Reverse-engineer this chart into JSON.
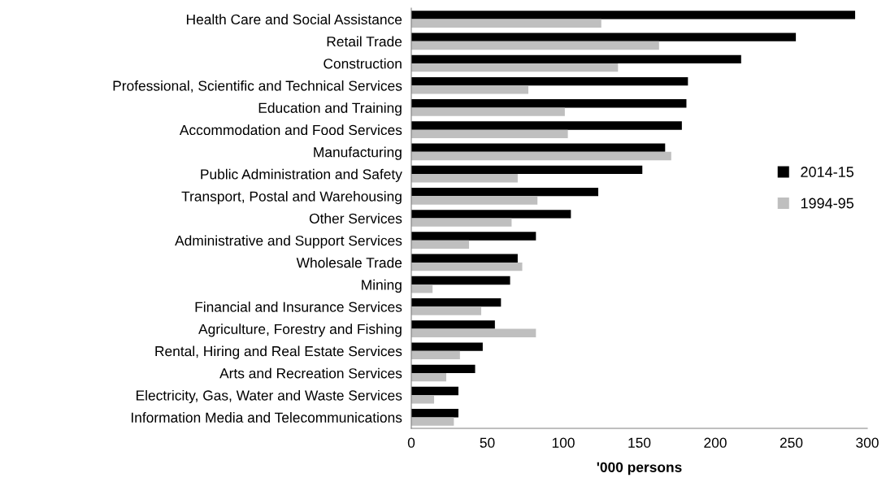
{
  "chart_data": {
    "type": "bar",
    "orientation": "horizontal",
    "xlabel": "'000 persons",
    "categories": [
      "Health Care and Social Assistance",
      "Retail Trade",
      "Construction",
      "Professional, Scientific and Technical Services",
      "Education and Training",
      "Accommodation and Food Services",
      "Manufacturing",
      "Public Administration and Safety",
      "Transport, Postal and Warehousing",
      "Other Services",
      "Administrative and Support Services",
      "Wholesale Trade",
      "Mining",
      "Financial and Insurance Services",
      "Agriculture, Forestry and Fishing",
      "Rental, Hiring and Real Estate Services",
      "Arts and Recreation Services",
      "Electricity, Gas, Water and Waste Services",
      "Information Media and Telecommunications"
    ],
    "series": [
      {
        "name": "2014-15",
        "color": "#000000",
        "values": [
          292,
          253,
          217,
          182,
          181,
          178,
          167,
          152,
          123,
          105,
          82,
          70,
          65,
          59,
          55,
          47,
          42,
          31,
          31
        ]
      },
      {
        "name": "1994-95",
        "color": "#bfbfbf",
        "values": [
          125,
          163,
          136,
          77,
          101,
          103,
          171,
          70,
          83,
          66,
          38,
          73,
          14,
          46,
          82,
          32,
          23,
          15,
          28
        ]
      }
    ],
    "xlim": [
      0,
      300
    ],
    "xticks": [
      0,
      50,
      100,
      150,
      200,
      250,
      300
    ],
    "grid": false,
    "legend": "right"
  }
}
